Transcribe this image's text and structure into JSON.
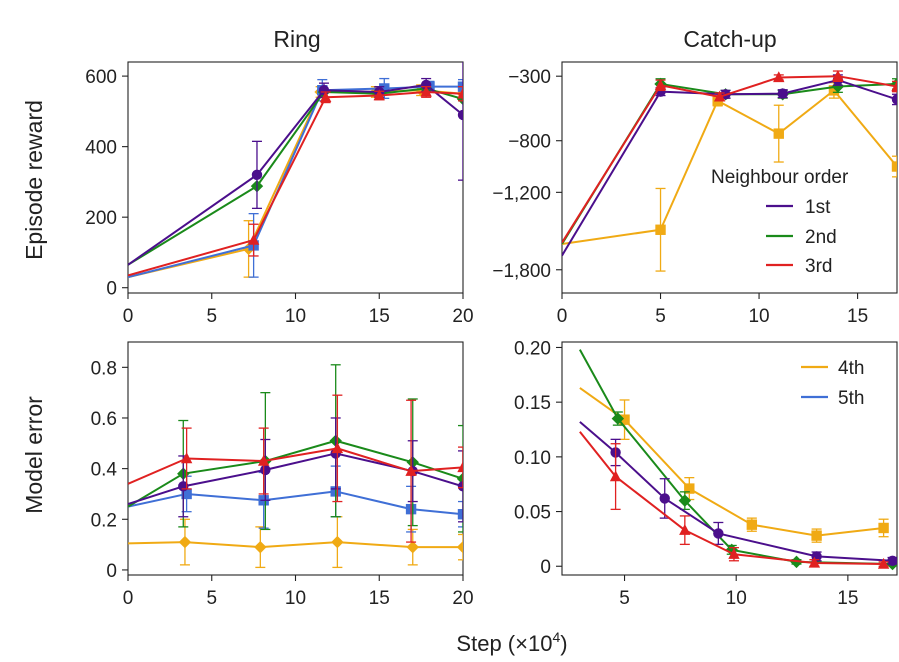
{
  "figure": {
    "row_labels": [
      "Episode reward",
      "Model error"
    ],
    "col_titles": [
      "Ring",
      "Catch-up"
    ],
    "xlabel_text": "Step (×10",
    "xlabel_exp": "4",
    "xlabel_close": ")"
  },
  "colors": {
    "1st": "#4b0f8c",
    "2nd": "#1a8a1a",
    "3rd": "#e02121",
    "4th": "#f0aa14",
    "5th": "#3f6fd6"
  },
  "legends": {
    "top": {
      "title": "Neighbour order",
      "entries": [
        "1st",
        "2nd",
        "3rd"
      ]
    },
    "bottom": {
      "entries": [
        "4th",
        "5th"
      ]
    }
  },
  "chart_data": [
    {
      "type": "line",
      "panel": "ring-reward",
      "title": "Ring",
      "ylabel": "Episode reward",
      "xlim": [
        0,
        20
      ],
      "ylim": [
        -15,
        640
      ],
      "xticks": [
        0,
        5,
        10,
        15,
        20
      ],
      "yticks": [
        0,
        200,
        400,
        600
      ],
      "ytick_labels": [
        "0",
        "200",
        "400",
        "600"
      ],
      "series": [
        {
          "name": "1st",
          "marker": "circle",
          "x": [
            0,
            7.7,
            11.7,
            15,
            17.8,
            20
          ],
          "y": [
            65,
            320,
            560,
            555,
            575,
            490
          ],
          "err": [
            0,
            95,
            20,
            15,
            18,
            185
          ]
        },
        {
          "name": "2nd",
          "marker": "diamond",
          "x": [
            0,
            7.7,
            11.7,
            15,
            17.8,
            20
          ],
          "y": [
            65,
            288,
            555,
            550,
            565,
            535
          ],
          "err": [
            0,
            0,
            0,
            0,
            0,
            0
          ]
        },
        {
          "name": "3rd",
          "marker": "triangle",
          "x": [
            0,
            7.5,
            11.8,
            15,
            17.8,
            20
          ],
          "y": [
            35,
            135,
            540,
            545,
            555,
            550
          ],
          "err": [
            0,
            45,
            15,
            12,
            15,
            20
          ]
        },
        {
          "name": "4th",
          "marker": "diamond",
          "x": [
            0,
            7.2,
            11.5,
            14.8,
            17.5,
            20
          ],
          "y": [
            30,
            110,
            555,
            555,
            560,
            550
          ],
          "err": [
            0,
            80,
            15,
            15,
            15,
            20
          ]
        },
        {
          "name": "5th",
          "marker": "square",
          "x": [
            0,
            7.5,
            11.6,
            15.3,
            18,
            20
          ],
          "y": [
            30,
            120,
            560,
            565,
            570,
            570
          ],
          "err": [
            0,
            90,
            30,
            28,
            15,
            20
          ]
        }
      ]
    },
    {
      "type": "line",
      "panel": "catchup-reward",
      "title": "Catch-up",
      "xlim": [
        0,
        17
      ],
      "ylim": [
        -1980,
        -190
      ],
      "xticks": [
        0,
        5,
        10,
        15
      ],
      "yticks": [
        -300,
        -800,
        -1200,
        -1800
      ],
      "ytick_labels": [
        "−300",
        "−800",
        "−1,200",
        "−1,800"
      ],
      "series": [
        {
          "name": "1st",
          "marker": "circle",
          "x": [
            0,
            5,
            8.3,
            11.2,
            14,
            17
          ],
          "y": [
            -1690,
            -420,
            -440,
            -435,
            -330,
            -480
          ],
          "err": [
            0,
            30,
            30,
            30,
            40,
            40
          ]
        },
        {
          "name": "2nd",
          "marker": "diamond",
          "x": [
            0,
            5,
            8.3,
            11.2,
            14,
            17
          ],
          "y": [
            -1600,
            -360,
            -440,
            -440,
            -380,
            -360
          ],
          "err": [
            0,
            40,
            30,
            30,
            45,
            40
          ]
        },
        {
          "name": "3rd",
          "marker": "triangle",
          "x": [
            0,
            5,
            8,
            11,
            14,
            17
          ],
          "y": [
            -1590,
            -370,
            -460,
            -310,
            -300,
            -380
          ],
          "err": [
            0,
            40,
            30,
            20,
            40,
            40
          ]
        },
        {
          "name": "4th",
          "marker": "square",
          "x": [
            0,
            5,
            7.9,
            11,
            13.8,
            17
          ],
          "y": [
            -1600,
            -1490,
            -490,
            -745,
            -410,
            -1000
          ],
          "err": [
            0,
            320,
            40,
            220,
            60,
            80
          ]
        }
      ]
    },
    {
      "type": "line",
      "panel": "ring-error",
      "ylabel": "Model error",
      "xlim": [
        0,
        20
      ],
      "ylim": [
        -0.02,
        0.9
      ],
      "xticks": [
        0,
        5,
        10,
        15,
        20
      ],
      "yticks": [
        0,
        0.2,
        0.4,
        0.6,
        0.8
      ],
      "ytick_labels": [
        "0",
        "0.2",
        "0.4",
        "0.6",
        "0.8"
      ],
      "series": [
        {
          "name": "1st",
          "marker": "circle",
          "x": [
            0,
            3.3,
            8.2,
            12.4,
            17,
            20
          ],
          "y": [
            0.26,
            0.33,
            0.395,
            0.46,
            0.39,
            0.33
          ],
          "err": [
            0,
            0.12,
            0.12,
            0.14,
            0.12,
            0.14
          ]
        },
        {
          "name": "2nd",
          "marker": "diamond",
          "x": [
            0,
            3.3,
            8.2,
            12.4,
            17,
            20
          ],
          "y": [
            0.25,
            0.38,
            0.43,
            0.51,
            0.425,
            0.36
          ],
          "err": [
            0,
            0.21,
            0.27,
            0.3,
            0.25,
            0.21
          ]
        },
        {
          "name": "3rd",
          "marker": "triangle",
          "x": [
            0,
            3.5,
            8.1,
            12.5,
            16.9,
            20
          ],
          "y": [
            0.34,
            0.44,
            0.43,
            0.48,
            0.39,
            0.405
          ],
          "err": [
            0,
            0.12,
            0.13,
            0.21,
            0.28,
            0.08
          ]
        },
        {
          "name": "4th",
          "marker": "diamond",
          "x": [
            0,
            3.4,
            7.9,
            12.5,
            17,
            20
          ],
          "y": [
            0.105,
            0.11,
            0.09,
            0.11,
            0.09,
            0.09
          ],
          "err": [
            0,
            0.09,
            0.08,
            0.1,
            0.07,
            0.05
          ]
        },
        {
          "name": "5th",
          "marker": "square",
          "x": [
            0,
            3.5,
            8.1,
            12.4,
            16.9,
            20
          ],
          "y": [
            0.25,
            0.3,
            0.275,
            0.31,
            0.24,
            0.22
          ],
          "err": [
            0,
            0.07,
            0.11,
            0.1,
            0.09,
            0.05
          ]
        }
      ]
    },
    {
      "type": "line",
      "panel": "catchup-error",
      "xlim": [
        2.2,
        17.2
      ],
      "ylim": [
        -0.008,
        0.205
      ],
      "xticks": [
        5,
        10,
        15
      ],
      "yticks": [
        0,
        0.05,
        0.1,
        0.15,
        0.2
      ],
      "ytick_labels": [
        "0",
        "0.05",
        "0.10",
        "0.15",
        "0.20"
      ],
      "series": [
        {
          "name": "1st",
          "marker": "circle",
          "x": [
            3,
            4.6,
            6.8,
            9.2,
            13.6,
            17
          ],
          "y": [
            0.132,
            0.104,
            0.062,
            0.03,
            0.009,
            0.005
          ],
          "err": [
            0,
            0.012,
            0.018,
            0.01,
            0.004,
            0.003
          ]
        },
        {
          "name": "2nd",
          "marker": "diamond",
          "x": [
            3,
            4.7,
            7.7,
            9.8,
            12.7,
            17
          ],
          "y": [
            0.198,
            0.135,
            0.06,
            0.015,
            0.004,
            0.002
          ],
          "err": [
            0,
            0.006,
            0.008,
            0.004,
            0.002,
            0.001
          ]
        },
        {
          "name": "3rd",
          "marker": "triangle",
          "x": [
            3,
            4.6,
            7.7,
            9.9,
            13.5,
            16.6
          ],
          "y": [
            0.123,
            0.082,
            0.033,
            0.011,
            0.003,
            0.002
          ],
          "err": [
            0,
            0.03,
            0.013,
            0.006,
            0.003,
            0.002
          ]
        },
        {
          "name": "4th",
          "marker": "square",
          "x": [
            3,
            5,
            7.9,
            10.7,
            13.6,
            16.6
          ],
          "y": [
            0.163,
            0.134,
            0.071,
            0.038,
            0.028,
            0.035
          ],
          "err": [
            0,
            0.018,
            0.01,
            0.006,
            0.006,
            0.008
          ]
        }
      ]
    }
  ]
}
